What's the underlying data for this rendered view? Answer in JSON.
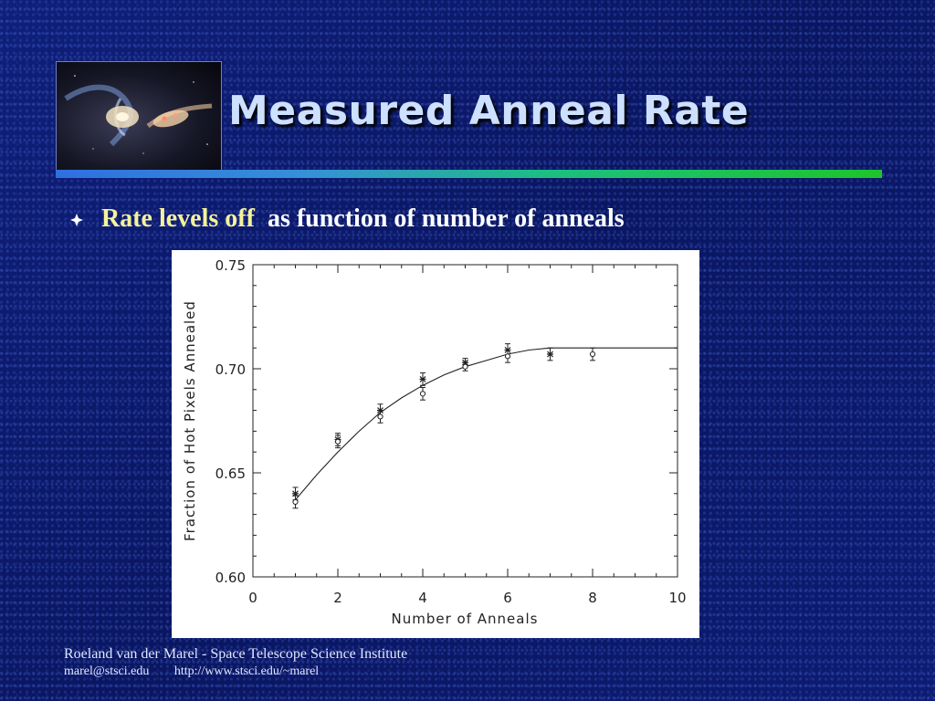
{
  "slide": {
    "title": "Measured Anneal Rate",
    "bullet_icon": "diamond-bullet-icon",
    "bullet_highlight": "Rate levels off",
    "bullet_rest": "as function of number of anneals",
    "thumbnail_icon": "galaxy-image",
    "footer": {
      "author": "Roeland van der Marel - Space Telescope Science Institute",
      "email": "marel@stsci.edu",
      "url": "http://www.stsci.edu/~marel"
    }
  },
  "chart_data": {
    "type": "scatter",
    "title": "",
    "xlabel": "Number of Anneals",
    "ylabel": "Fraction of Hot Pixels Annealed",
    "xlim": [
      0,
      10
    ],
    "ylim": [
      0.6,
      0.75
    ],
    "xticks": [
      "0",
      "2",
      "4",
      "6",
      "8",
      "10"
    ],
    "yticks": [
      "0.60",
      "0.65",
      "0.70",
      "0.75"
    ],
    "grid": false,
    "legend": "none",
    "series": [
      {
        "marker": "asterisk",
        "points": [
          {
            "x": 1,
            "y": 0.64,
            "err": 0.003
          },
          {
            "x": 2,
            "y": 0.666,
            "err": 0.003
          },
          {
            "x": 3,
            "y": 0.68,
            "err": 0.003
          },
          {
            "x": 4,
            "y": 0.695,
            "err": 0.003
          },
          {
            "x": 5,
            "y": 0.703,
            "err": 0.002
          },
          {
            "x": 6,
            "y": 0.709,
            "err": 0.003
          },
          {
            "x": 7,
            "y": 0.707,
            "err": 0.003
          }
        ]
      },
      {
        "marker": "circle",
        "points": [
          {
            "x": 1,
            "y": 0.636,
            "err": 0.003
          },
          {
            "x": 2,
            "y": 0.665,
            "err": 0.003
          },
          {
            "x": 3,
            "y": 0.677,
            "err": 0.003
          },
          {
            "x": 4,
            "y": 0.688,
            "err": 0.003
          },
          {
            "x": 5,
            "y": 0.701,
            "err": 0.002
          },
          {
            "x": 6,
            "y": 0.706,
            "err": 0.003
          },
          {
            "x": 8,
            "y": 0.707,
            "err": 0.003
          }
        ]
      }
    ],
    "fit_curve": {
      "x": [
        1,
        1.5,
        2,
        2.5,
        3,
        3.5,
        4,
        4.5,
        5,
        5.5,
        6,
        6.5,
        7,
        7.5,
        8,
        9,
        10
      ],
      "y": [
        0.637,
        0.649,
        0.66,
        0.67,
        0.679,
        0.686,
        0.692,
        0.697,
        0.701,
        0.704,
        0.707,
        0.709,
        0.71,
        0.71,
        0.71,
        0.71,
        0.71
      ]
    }
  }
}
